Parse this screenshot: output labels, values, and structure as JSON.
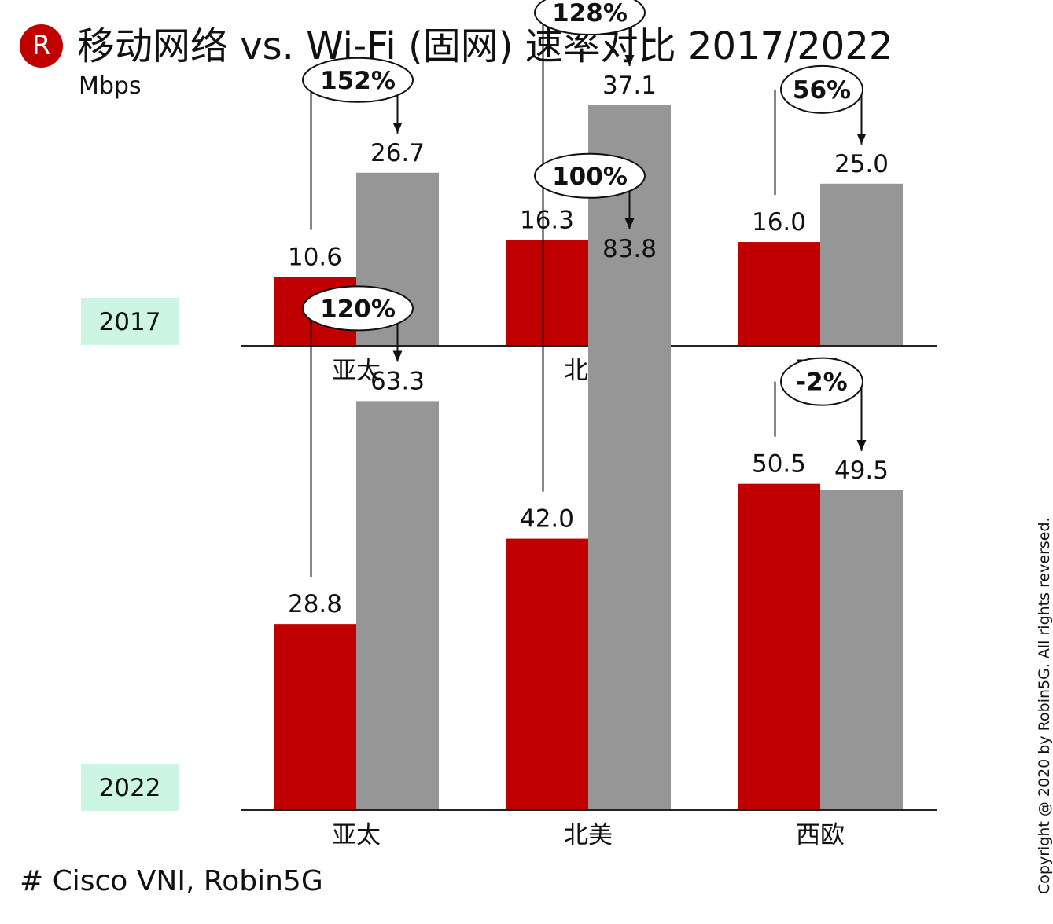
{
  "header": {
    "logo_letter": "R",
    "title": "移动网络 vs. Wi-Fi (固网) 速率对比 2017/2022",
    "unit": "Mbps"
  },
  "footer": {
    "source": "# Cisco VNI, Robin5G",
    "copyright": "Copyright @ 2020 by Robin5G. All rights reversed."
  },
  "colors": {
    "mobile": "#c00000",
    "wifi": "#969696",
    "year_badge": "#ccf5e4",
    "axis": "#222222"
  },
  "chart_data": [
    {
      "type": "bar",
      "panel_label": "2017",
      "categories": [
        "亚太",
        "北美",
        "西欧"
      ],
      "series": [
        {
          "values": [
            10.6,
            16.3,
            16.0
          ]
        },
        {
          "values": [
            26.7,
            37.1,
            25.0
          ]
        }
      ],
      "value_labels": [
        [
          "10.6",
          "16.3",
          "16.0"
        ],
        [
          "26.7",
          "37.1",
          "25.0"
        ]
      ],
      "growth_labels": [
        "152%",
        "128%",
        "56%"
      ],
      "ylim": [
        0,
        48.5
      ]
    },
    {
      "type": "bar",
      "panel_label": "2022",
      "categories": [
        "亚太",
        "北美",
        "西欧"
      ],
      "series": [
        {
          "values": [
            28.8,
            42.0,
            50.5
          ]
        },
        {
          "values": [
            63.3,
            83.8,
            49.5
          ]
        }
      ],
      "value_labels": [
        [
          "28.8",
          "42.0",
          "50.5"
        ],
        [
          "63.3",
          "83.8",
          "49.5"
        ]
      ],
      "growth_labels": [
        "120%",
        "100%",
        "-2%"
      ],
      "ylim": [
        0,
        107
      ]
    }
  ]
}
